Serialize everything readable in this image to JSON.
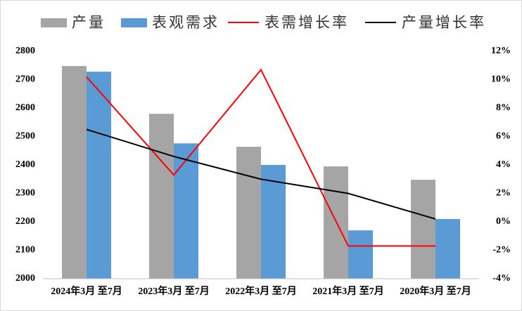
{
  "chart_data": {
    "type": "bar_line",
    "categories": [
      "2024年3月 至7月",
      "2023年3月 至7月",
      "2022年3月 至7月",
      "2021年3月 至7月",
      "2020年3月 至7月"
    ],
    "series": [
      {
        "name": "产量",
        "type": "bar",
        "color": "#a5a5a5",
        "values": [
          2748,
          2580,
          2464,
          2395,
          2348
        ]
      },
      {
        "name": "表观需求",
        "type": "bar",
        "color": "#5b9bd5",
        "values": [
          2728,
          2476,
          2400,
          2170,
          2210
        ]
      },
      {
        "name": "表需增长率",
        "type": "line",
        "axis": "y2",
        "color": "#ff0000",
        "values": [
          10.2,
          3.3,
          10.7,
          -1.7,
          -1.7
        ]
      },
      {
        "name": "产量增长率",
        "type": "line",
        "axis": "y2",
        "color": "#000000",
        "values": [
          6.5,
          4.6,
          3.0,
          2.0,
          0.2
        ]
      }
    ],
    "ylim": [
      2000,
      2800
    ],
    "yticks": [
      2000,
      2100,
      2200,
      2300,
      2400,
      2500,
      2600,
      2700,
      2800
    ],
    "y2lim": [
      -4,
      12
    ],
    "y2ticks": [
      {
        "value": -4,
        "label": "-4%"
      },
      {
        "value": -2,
        "label": "-2%"
      },
      {
        "value": 0,
        "label": "0%"
      },
      {
        "value": 2,
        "label": "2%"
      },
      {
        "value": 4,
        "label": "4%"
      },
      {
        "value": 6,
        "label": "6%"
      },
      {
        "value": 8,
        "label": "8%"
      },
      {
        "value": 10,
        "label": "10%"
      },
      {
        "value": 12,
        "label": "12%"
      }
    ],
    "grid": false,
    "legend": "top"
  }
}
